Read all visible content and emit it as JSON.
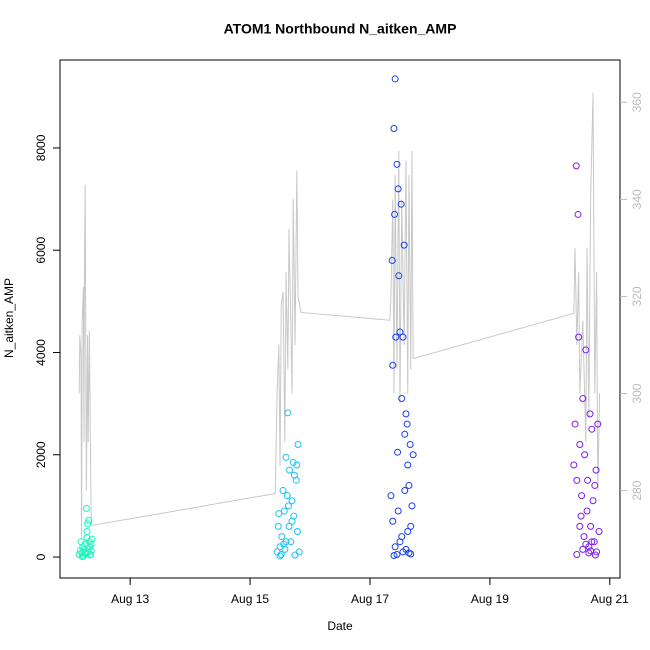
{
  "chart_data": {
    "type": "scatter",
    "title": "ATOM1 Northbound N_aitken_AMP",
    "x_label": "Date",
    "y_label": "N_aitken_AMP",
    "xlim": [
      11.83,
      21.17
    ],
    "xticks": [
      {
        "value": 13,
        "label": "Aug 13"
      },
      {
        "value": 15,
        "label": "Aug 15"
      },
      {
        "value": 17,
        "label": "Aug 17"
      },
      {
        "value": 19,
        "label": "Aug 19"
      },
      {
        "value": 21,
        "label": "Aug 21"
      }
    ],
    "ylim": [
      -410,
      9720
    ],
    "yticks": [
      0,
      2000,
      4000,
      6000,
      8000
    ],
    "y2lim": [
      262,
      368.7
    ],
    "y2ticks": [
      280,
      300,
      320,
      340,
      360
    ],
    "series": [
      {
        "color": "#1CF5C0",
        "x": [
          12.15,
          12.17,
          12.18,
          12.2,
          12.21,
          12.22,
          12.23,
          12.25,
          12.26,
          12.27,
          12.28,
          12.29,
          12.3,
          12.31,
          12.32,
          12.33,
          12.34,
          12.35,
          12.36,
          12.2,
          12.25,
          12.3,
          12.33,
          12.28,
          12.35
        ],
        "values": [
          50,
          120,
          300,
          80,
          200,
          20,
          150,
          250,
          60,
          950,
          380,
          650,
          100,
          720,
          300,
          200,
          50,
          250,
          350,
          10,
          90,
          160,
          40,
          500,
          120
        ]
      },
      {
        "color": "#19C3F2",
        "x": [
          15.45,
          15.47,
          15.48,
          15.5,
          15.52,
          15.53,
          15.55,
          15.57,
          15.58,
          15.6,
          15.62,
          15.63,
          15.65,
          15.66,
          15.68,
          15.7,
          15.72,
          15.73,
          15.75,
          15.77,
          15.78,
          15.8,
          15.82,
          15.5,
          15.6,
          15.7,
          15.74,
          15.79,
          15.64,
          15.56
        ],
        "values": [
          100,
          600,
          850,
          200,
          50,
          400,
          1300,
          900,
          150,
          1950,
          1200,
          2820,
          600,
          1700,
          300,
          1100,
          1850,
          800,
          40,
          1500,
          1800,
          2200,
          100,
          20,
          300,
          700,
          1600,
          500,
          1000,
          250
        ]
      },
      {
        "color": "#1A3EF0",
        "x": [
          17.35,
          17.37,
          17.38,
          17.4,
          17.41,
          17.42,
          17.43,
          17.45,
          17.46,
          17.47,
          17.48,
          17.5,
          17.52,
          17.53,
          17.55,
          17.57,
          17.58,
          17.6,
          17.62,
          17.63,
          17.65,
          17.67,
          17.68,
          17.7,
          17.72,
          17.42,
          17.45,
          17.5,
          17.55,
          17.6,
          17.65,
          17.4,
          17.38,
          17.47,
          17.53,
          17.58,
          17.63,
          17.68
        ],
        "values": [
          1200,
          5800,
          3750,
          8380,
          6700,
          9350,
          4300,
          7680,
          2050,
          7200,
          5500,
          4400,
          6900,
          3100,
          4300,
          6100,
          1300,
          2800,
          2600,
          500,
          1400,
          2200,
          600,
          1000,
          2000,
          200,
          50,
          300,
          100,
          150,
          80,
          30,
          700,
          900,
          400,
          2400,
          1800,
          60
        ]
      },
      {
        "color": "#7A1EF0",
        "x": [
          20.4,
          20.42,
          20.44,
          20.45,
          20.47,
          20.48,
          20.5,
          20.52,
          20.53,
          20.55,
          20.57,
          20.58,
          20.6,
          20.62,
          20.63,
          20.65,
          20.67,
          20.68,
          20.7,
          20.72,
          20.74,
          20.75,
          20.77,
          20.78,
          20.8,
          20.82,
          20.45,
          20.55,
          20.65,
          20.7,
          20.76,
          20.5,
          20.6,
          20.68
        ],
        "values": [
          1800,
          2600,
          7650,
          1500,
          6700,
          4300,
          2200,
          800,
          1200,
          3100,
          400,
          2000,
          4050,
          900,
          1500,
          200,
          2800,
          600,
          2500,
          1100,
          300,
          1400,
          1700,
          100,
          2600,
          500,
          50,
          150,
          80,
          300,
          40,
          600,
          250,
          120
        ]
      },
      {
        "type": "line",
        "axis": "y2",
        "color": "#c8c8c8",
        "x": [
          12.15,
          12.16,
          12.18,
          12.19,
          12.2,
          12.22,
          12.23,
          12.24,
          12.25,
          12.27,
          12.29,
          12.3,
          12.32,
          12.35,
          15.42,
          15.45,
          15.48,
          15.5,
          15.52,
          15.55,
          15.58,
          15.6,
          15.63,
          15.65,
          15.7,
          15.72,
          15.75,
          15.78,
          15.8,
          15.85,
          17.33,
          17.35,
          17.38,
          17.4,
          17.42,
          17.45,
          17.48,
          17.5,
          17.53,
          17.57,
          17.6,
          17.63,
          17.65,
          17.68,
          17.7,
          17.72,
          20.4,
          20.42,
          20.45,
          20.48,
          20.5,
          20.55,
          20.6,
          20.62,
          20.65,
          20.68,
          20.72,
          20.75,
          20.78,
          20.8,
          20.83
        ],
        "values": [
          300,
          312,
          308,
          270,
          315,
          322,
          290,
          330,
          343,
          280,
          312,
          290,
          313,
          272.8,
          279.4,
          300,
          310,
          285,
          318,
          321,
          290,
          325,
          305,
          334,
          300,
          340,
          310,
          346,
          320,
          316.7,
          315.1,
          320,
          340,
          300,
          345,
          305,
          350,
          298,
          340,
          310,
          348,
          300,
          345,
          305,
          350,
          307.2,
          316.5,
          330,
          310,
          325,
          300,
          315,
          290,
          330,
          295,
          340,
          362,
          300,
          325,
          280,
          300
        ]
      }
    ]
  }
}
